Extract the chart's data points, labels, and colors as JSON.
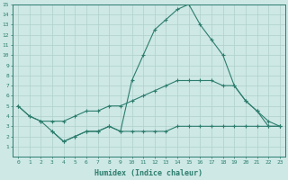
{
  "xlabel": "Humidex (Indice chaleur)",
  "x_values": [
    0,
    1,
    2,
    3,
    4,
    5,
    6,
    7,
    8,
    9,
    10,
    11,
    12,
    13,
    14,
    15,
    16,
    17,
    18,
    19,
    20,
    21,
    22,
    23
  ],
  "line1": [
    5.0,
    4.0,
    3.5,
    2.5,
    1.5,
    2.0,
    2.5,
    2.5,
    3.0,
    2.5,
    7.5,
    10.0,
    12.5,
    13.5,
    14.5,
    15.0,
    13.0,
    11.5,
    10.0,
    7.0,
    5.5,
    4.5,
    3.0,
    3.0
  ],
  "line2": [
    5.0,
    4.0,
    3.5,
    3.5,
    3.5,
    4.0,
    4.5,
    4.5,
    5.0,
    5.0,
    5.5,
    6.0,
    6.5,
    7.0,
    7.5,
    7.5,
    7.5,
    7.5,
    7.0,
    7.0,
    5.5,
    4.5,
    3.5,
    3.0
  ],
  "line3": [
    null,
    null,
    null,
    2.5,
    1.5,
    2.0,
    2.5,
    2.5,
    3.0,
    2.5,
    2.5,
    2.5,
    2.5,
    2.5,
    3.0,
    3.0,
    3.0,
    3.0,
    3.0,
    3.0,
    3.0,
    3.0,
    3.0,
    3.0
  ],
  "line_color": "#2d7d6e",
  "bg_color": "#cde8e5",
  "grid_color_major": "#b0d0cc",
  "grid_color_minor": "#c8e2de",
  "ylim": [
    0,
    15
  ],
  "xlim": [
    -0.5,
    23.5
  ],
  "yticks": [
    1,
    2,
    3,
    4,
    5,
    6,
    7,
    8,
    9,
    10,
    11,
    12,
    13,
    14,
    15
  ],
  "xticks": [
    0,
    1,
    2,
    3,
    4,
    5,
    6,
    7,
    8,
    9,
    10,
    11,
    12,
    13,
    14,
    15,
    16,
    17,
    18,
    19,
    20,
    21,
    22,
    23
  ]
}
